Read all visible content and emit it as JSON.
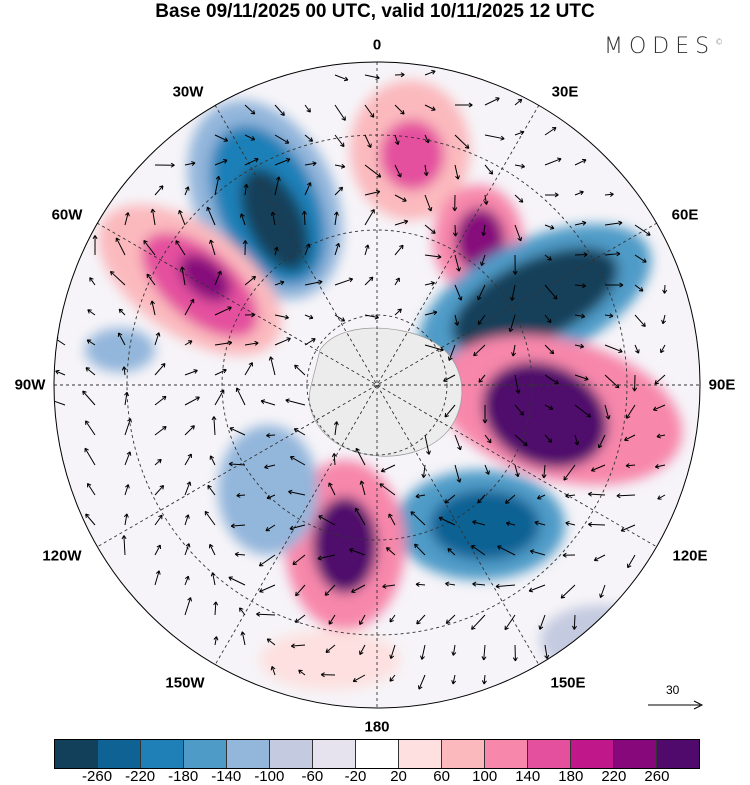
{
  "title": "Base 09/11/2025 00 UTC, valid 10/11/2025 12 UTC",
  "logo": "MODES",
  "longitude_labels": [
    "0",
    "30E",
    "60E",
    "90E",
    "120E",
    "150E",
    "180",
    "150W",
    "120W",
    "90W",
    "60W",
    "30W"
  ],
  "reference_vector": {
    "label": "30",
    "icon": "arrow-right-icon"
  },
  "colorbar": {
    "colors": [
      "#123f5a",
      "#0e6294",
      "#1f80b8",
      "#4f9bc8",
      "#93b6db",
      "#c4cae0",
      "#e6e3ef",
      "#ffffff",
      "#fde0df",
      "#fbb9bd",
      "#f787ab",
      "#e44f9e",
      "#c0188a",
      "#86087b",
      "#4f0a6c"
    ],
    "tick_labels": [
      "-260",
      "-220",
      "-180",
      "-140",
      "-100",
      "-60",
      "-20",
      "20",
      "60",
      "100",
      "140",
      "180",
      "220",
      "260"
    ]
  }
}
